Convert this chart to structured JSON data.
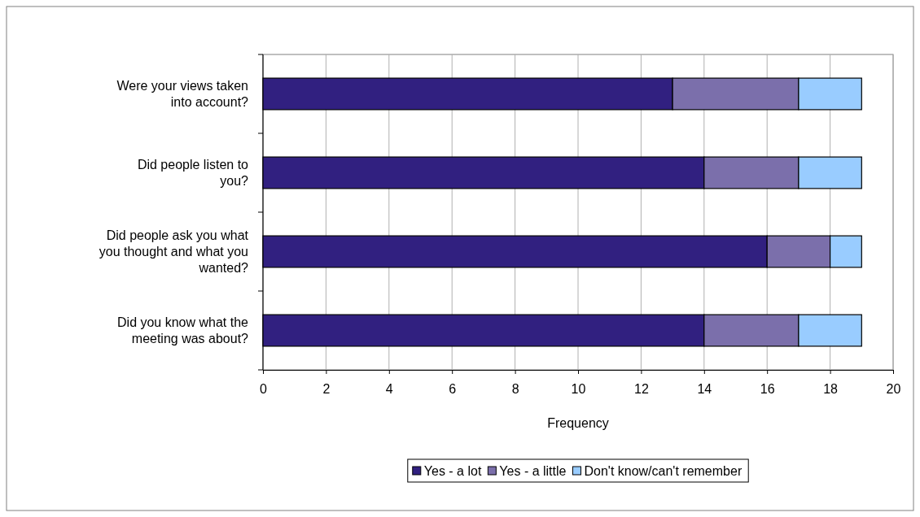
{
  "chart_data": {
    "type": "bar",
    "orientation": "horizontal",
    "stacked": true,
    "xlabel": "Frequency",
    "categories": [
      "Were your views taken into account?",
      "Did people listen to you?",
      "Did people ask you what you thought and what you wanted?",
      "Did you know what the meeting was about?"
    ],
    "series": [
      {
        "name": "Yes - a lot",
        "color": "#312080",
        "values": [
          13,
          14,
          16,
          14
        ]
      },
      {
        "name": "Yes - a little",
        "color": "#7b6fab",
        "values": [
          4,
          3,
          2,
          3
        ]
      },
      {
        "name": "Don't know/can't remember",
        "color": "#99ccff",
        "values": [
          2,
          2,
          1,
          2
        ]
      }
    ],
    "xlim": [
      0,
      20
    ],
    "xticks": [
      0,
      2,
      4,
      6,
      8,
      10,
      12,
      14,
      16,
      18,
      20
    ],
    "grid": "x",
    "legend": "bottom"
  }
}
